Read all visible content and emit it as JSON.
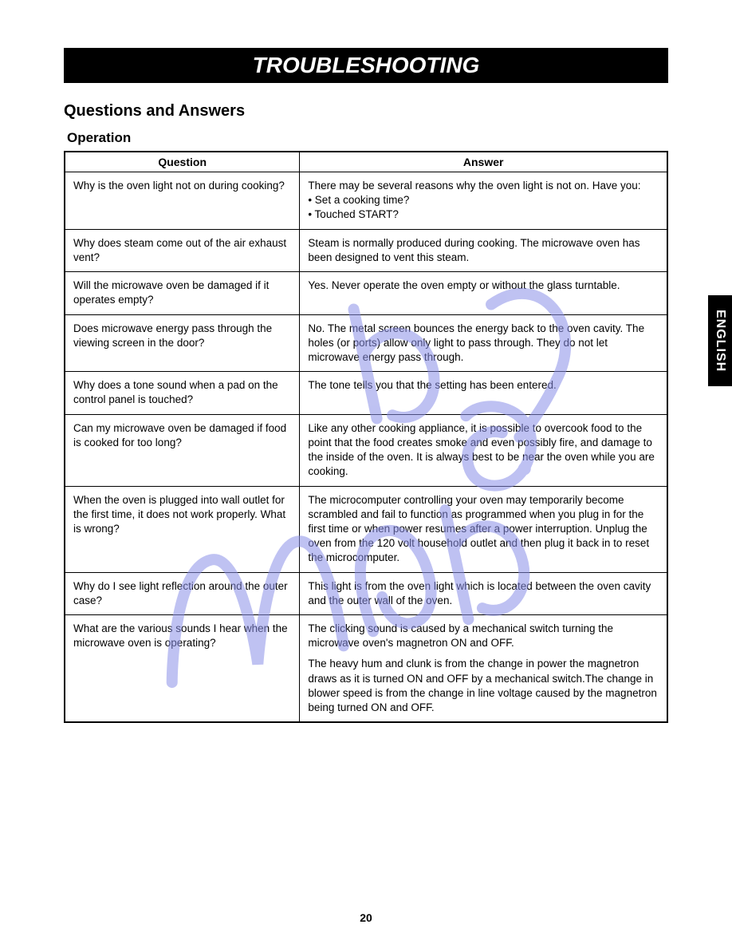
{
  "title_bar": "TROUBLESHOOTING",
  "section_heading": "Questions and Answers",
  "sub_heading": "Operation",
  "side_tab": "ENGLISH",
  "page_number": "20",
  "table": {
    "headers": {
      "question": "Question",
      "answer": "Answer"
    },
    "rows": [
      {
        "q": "Why is the oven light not on during cooking?",
        "a": "There may be several reasons why the oven light is not on. Have you:\n• Set a cooking time?\n• Touched START?"
      },
      {
        "q": "Why does steam come out of the air exhaust vent?",
        "a": "Steam is normally produced during cooking. The microwave oven has been designed to vent this steam."
      },
      {
        "q": "Will the microwave oven be damaged if it operates empty?",
        "a": "Yes. Never operate the oven empty or without the glass turntable."
      },
      {
        "q": "Does microwave energy pass through the viewing screen in the door?",
        "a": "No. The metal screen bounces the energy back to the oven cavity. The holes (or ports) allow only light to pass through. They do not let microwave energy pass through."
      },
      {
        "q": "Why does a tone sound when a pad on the control panel is touched?",
        "a": "The tone tells you that the setting has been entered."
      },
      {
        "q": "Can my microwave oven be damaged if food is cooked for too long?",
        "a": "Like any other cooking appliance, it is possible to overcook food to the point that the food creates smoke and even possibly fire, and damage to the inside of the oven. It is always best to be near the oven while you are cooking."
      },
      {
        "q": "When the oven is plugged into wall outlet for the first time, it does not work properly. What is wrong?",
        "a": "The microcomputer controlling your oven may temporarily become scrambled and fail to function as programmed when you plug in for the first time or when power resumes after a power interruption. Unplug the oven from the 120 volt household outlet and then plug it back in to reset the microcomputer."
      },
      {
        "q": "Why do I see light reflection around the outer case?",
        "a": "This light is from the oven light which is located between the oven cavity and the outer wall of the oven."
      },
      {
        "q": "What are the various sounds I hear when the microwave oven is operating?",
        "a": "The clicking sound is caused by a mechanical switch turning the microwave oven's magnetron ON and OFF.\n\nThe heavy hum and clunk is from the change in power the magnetron draws as it is turned ON and OFF by a mechanical switch.The change in blower speed is from the change in line voltage caused by the magnetron being turned ON and OFF."
      }
    ]
  },
  "watermark": {
    "color": "#8a8fe8",
    "opacity": 0.55
  }
}
